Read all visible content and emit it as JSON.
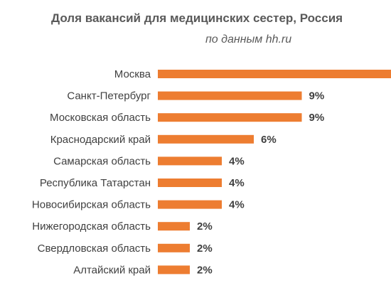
{
  "chart_data": {
    "type": "bar",
    "orientation": "horizontal",
    "title": "Доля вакансий для медицинских сестер, Россия",
    "subtitle": "по данным hh.ru",
    "categories": [
      "Москва",
      "Санкт-Петербург",
      "Московская область",
      "Краснодарский край",
      "Самарская область",
      "Республика Татарстан",
      "Новосибирская область",
      "Нижегородская область",
      "Свердловская область",
      "Алтайский край"
    ],
    "values": [
      16,
      9,
      9,
      6,
      4,
      4,
      4,
      2,
      2,
      2
    ],
    "data_labels": [
      "",
      "9%",
      "9%",
      "6%",
      "4%",
      "4%",
      "4%",
      "2%",
      "2%",
      "2%"
    ],
    "bar_color": "#ED7D31",
    "text_color": "#404040",
    "xlim": [
      0,
      16
    ],
    "grid": false,
    "legend": "none"
  }
}
